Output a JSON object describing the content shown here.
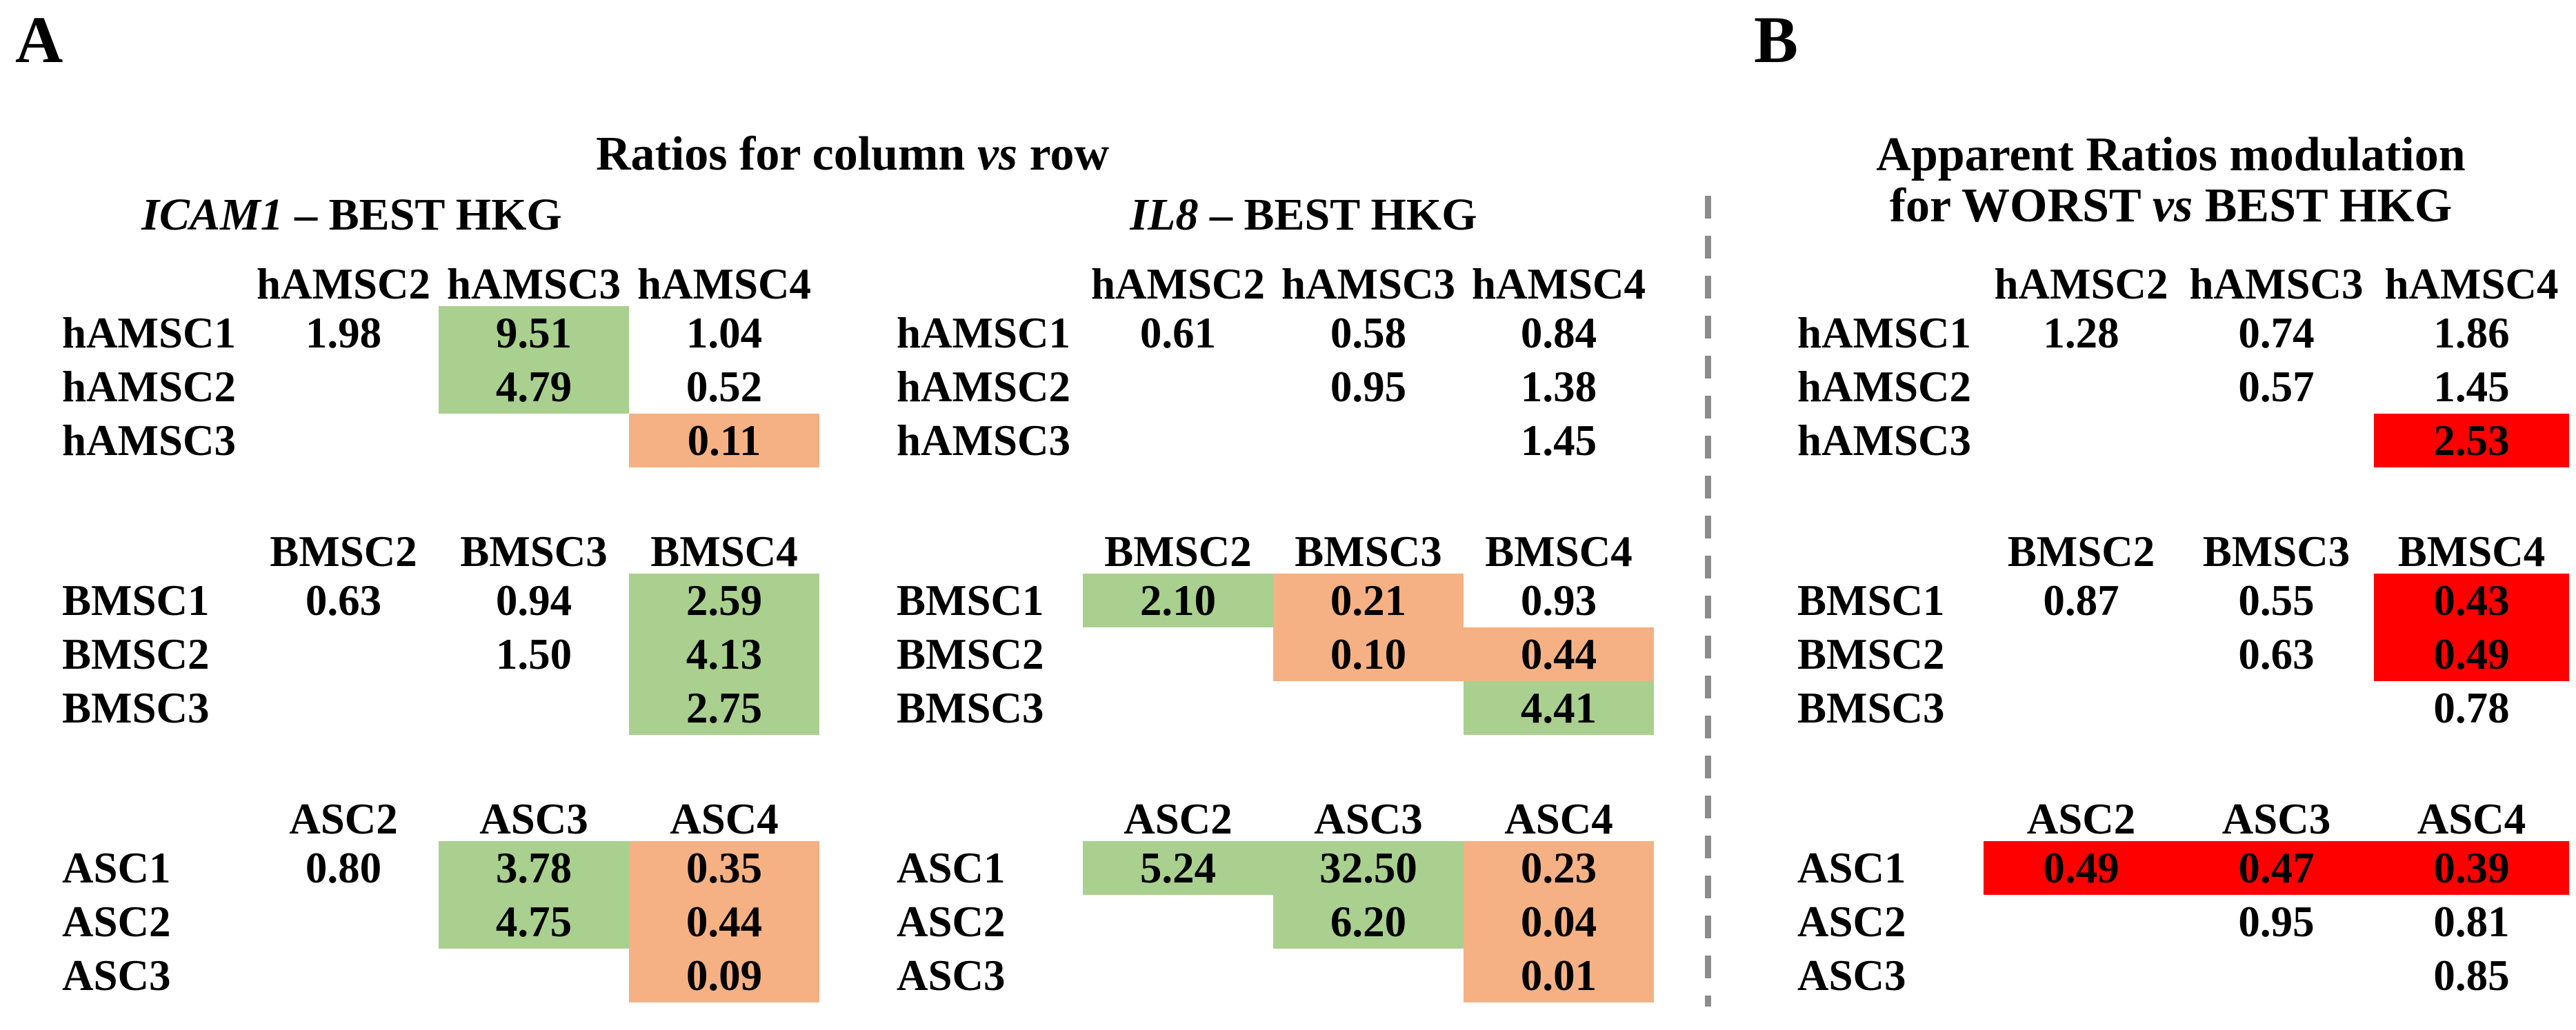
{
  "colors": {
    "highlight_green": "#A9D08E",
    "highlight_orange": "#F5B183",
    "highlight_red": "#FF0000",
    "divider": "#8C8C8C",
    "text": "#000000",
    "background": "#FFFFFF"
  },
  "panelA": {
    "label": "A",
    "title": {
      "pre": "Ratios for column ",
      "italic": "vs",
      "post": " row"
    },
    "tables": [
      {
        "id": "icam1",
        "heading": {
          "gene": "ICAM1",
          "rest": " – BEST HKG"
        },
        "matrices": [
          {
            "group": "hAMSC",
            "columns": [
              "hAMSC2",
              "hAMSC3",
              "hAMSC4"
            ],
            "rows": [
              {
                "label": "hAMSC1",
                "cells": [
                  {
                    "value": "1.98",
                    "highlight": "none"
                  },
                  {
                    "value": "9.51",
                    "highlight": "green"
                  },
                  {
                    "value": "1.04",
                    "highlight": "none"
                  }
                ]
              },
              {
                "label": "hAMSC2",
                "cells": [
                  {
                    "value": "",
                    "highlight": "none"
                  },
                  {
                    "value": "4.79",
                    "highlight": "green"
                  },
                  {
                    "value": "0.52",
                    "highlight": "none"
                  }
                ]
              },
              {
                "label": "hAMSC3",
                "cells": [
                  {
                    "value": "",
                    "highlight": "none"
                  },
                  {
                    "value": "",
                    "highlight": "none"
                  },
                  {
                    "value": "0.11",
                    "highlight": "orange"
                  }
                ]
              }
            ]
          },
          {
            "group": "BMSC",
            "columns": [
              "BMSC2",
              "BMSC3",
              "BMSC4"
            ],
            "rows": [
              {
                "label": "BMSC1",
                "cells": [
                  {
                    "value": "0.63",
                    "highlight": "none"
                  },
                  {
                    "value": "0.94",
                    "highlight": "none"
                  },
                  {
                    "value": "2.59",
                    "highlight": "green"
                  }
                ]
              },
              {
                "label": "BMSC2",
                "cells": [
                  {
                    "value": "",
                    "highlight": "none"
                  },
                  {
                    "value": "1.50",
                    "highlight": "none"
                  },
                  {
                    "value": "4.13",
                    "highlight": "green"
                  }
                ]
              },
              {
                "label": "BMSC3",
                "cells": [
                  {
                    "value": "",
                    "highlight": "none"
                  },
                  {
                    "value": "",
                    "highlight": "none"
                  },
                  {
                    "value": "2.75",
                    "highlight": "green"
                  }
                ]
              }
            ]
          },
          {
            "group": "ASC",
            "columns": [
              "ASC2",
              "ASC3",
              "ASC4"
            ],
            "rows": [
              {
                "label": "ASC1",
                "cells": [
                  {
                    "value": "0.80",
                    "highlight": "none"
                  },
                  {
                    "value": "3.78",
                    "highlight": "green"
                  },
                  {
                    "value": "0.35",
                    "highlight": "orange"
                  }
                ]
              },
              {
                "label": "ASC2",
                "cells": [
                  {
                    "value": "",
                    "highlight": "none"
                  },
                  {
                    "value": "4.75",
                    "highlight": "green"
                  },
                  {
                    "value": "0.44",
                    "highlight": "orange"
                  }
                ]
              },
              {
                "label": "ASC3",
                "cells": [
                  {
                    "value": "",
                    "highlight": "none"
                  },
                  {
                    "value": "",
                    "highlight": "none"
                  },
                  {
                    "value": "0.09",
                    "highlight": "orange"
                  }
                ]
              }
            ]
          }
        ]
      },
      {
        "id": "il8",
        "heading": {
          "gene": "IL8",
          "rest": " – BEST HKG"
        },
        "matrices": [
          {
            "group": "hAMSC",
            "columns": [
              "hAMSC2",
              "hAMSC3",
              "hAMSC4"
            ],
            "rows": [
              {
                "label": "hAMSC1",
                "cells": [
                  {
                    "value": "0.61",
                    "highlight": "none"
                  },
                  {
                    "value": "0.58",
                    "highlight": "none"
                  },
                  {
                    "value": "0.84",
                    "highlight": "none"
                  }
                ]
              },
              {
                "label": "hAMSC2",
                "cells": [
                  {
                    "value": "",
                    "highlight": "none"
                  },
                  {
                    "value": "0.95",
                    "highlight": "none"
                  },
                  {
                    "value": "1.38",
                    "highlight": "none"
                  }
                ]
              },
              {
                "label": "hAMSC3",
                "cells": [
                  {
                    "value": "",
                    "highlight": "none"
                  },
                  {
                    "value": "",
                    "highlight": "none"
                  },
                  {
                    "value": "1.45",
                    "highlight": "none"
                  }
                ]
              }
            ]
          },
          {
            "group": "BMSC",
            "columns": [
              "BMSC2",
              "BMSC3",
              "BMSC4"
            ],
            "rows": [
              {
                "label": "BMSC1",
                "cells": [
                  {
                    "value": "2.10",
                    "highlight": "green"
                  },
                  {
                    "value": "0.21",
                    "highlight": "orange"
                  },
                  {
                    "value": "0.93",
                    "highlight": "none"
                  }
                ]
              },
              {
                "label": "BMSC2",
                "cells": [
                  {
                    "value": "",
                    "highlight": "none"
                  },
                  {
                    "value": "0.10",
                    "highlight": "orange"
                  },
                  {
                    "value": "0.44",
                    "highlight": "orange"
                  }
                ]
              },
              {
                "label": "BMSC3",
                "cells": [
                  {
                    "value": "",
                    "highlight": "none"
                  },
                  {
                    "value": "",
                    "highlight": "none"
                  },
                  {
                    "value": "4.41",
                    "highlight": "green"
                  }
                ]
              }
            ]
          },
          {
            "group": "ASC",
            "columns": [
              "ASC2",
              "ASC3",
              "ASC4"
            ],
            "rows": [
              {
                "label": "ASC1",
                "cells": [
                  {
                    "value": "5.24",
                    "highlight": "green"
                  },
                  {
                    "value": "32.50",
                    "highlight": "green"
                  },
                  {
                    "value": "0.23",
                    "highlight": "orange"
                  }
                ]
              },
              {
                "label": "ASC2",
                "cells": [
                  {
                    "value": "",
                    "highlight": "none"
                  },
                  {
                    "value": "6.20",
                    "highlight": "green"
                  },
                  {
                    "value": "0.04",
                    "highlight": "orange"
                  }
                ]
              },
              {
                "label": "ASC3",
                "cells": [
                  {
                    "value": "",
                    "highlight": "none"
                  },
                  {
                    "value": "",
                    "highlight": "none"
                  },
                  {
                    "value": "0.01",
                    "highlight": "orange"
                  }
                ]
              }
            ]
          }
        ]
      }
    ]
  },
  "panelB": {
    "label": "B",
    "title": {
      "line1": "Apparent Ratios modulation",
      "line2_pre": "for WORST ",
      "line2_italic": "vs",
      "line2_post": " BEST HKG"
    },
    "matrices": [
      {
        "group": "hAMSC",
        "columns": [
          "hAMSC2",
          "hAMSC3",
          "hAMSC4"
        ],
        "rows": [
          {
            "label": "hAMSC1",
            "cells": [
              {
                "value": "1.28",
                "highlight": "none"
              },
              {
                "value": "0.74",
                "highlight": "none"
              },
              {
                "value": "1.86",
                "highlight": "none"
              }
            ]
          },
          {
            "label": "hAMSC2",
            "cells": [
              {
                "value": "",
                "highlight": "none"
              },
              {
                "value": "0.57",
                "highlight": "none"
              },
              {
                "value": "1.45",
                "highlight": "none"
              }
            ]
          },
          {
            "label": "hAMSC3",
            "cells": [
              {
                "value": "",
                "highlight": "none"
              },
              {
                "value": "",
                "highlight": "none"
              },
              {
                "value": "2.53",
                "highlight": "red"
              }
            ]
          }
        ]
      },
      {
        "group": "BMSC",
        "columns": [
          "BMSC2",
          "BMSC3",
          "BMSC4"
        ],
        "rows": [
          {
            "label": "BMSC1",
            "cells": [
              {
                "value": "0.87",
                "highlight": "none"
              },
              {
                "value": "0.55",
                "highlight": "none"
              },
              {
                "value": "0.43",
                "highlight": "red"
              }
            ]
          },
          {
            "label": "BMSC2",
            "cells": [
              {
                "value": "",
                "highlight": "none"
              },
              {
                "value": "0.63",
                "highlight": "none"
              },
              {
                "value": "0.49",
                "highlight": "red"
              }
            ]
          },
          {
            "label": "BMSC3",
            "cells": [
              {
                "value": "",
                "highlight": "none"
              },
              {
                "value": "",
                "highlight": "none"
              },
              {
                "value": "0.78",
                "highlight": "none"
              }
            ]
          }
        ]
      },
      {
        "group": "ASC",
        "columns": [
          "ASC2",
          "ASC3",
          "ASC4"
        ],
        "rows": [
          {
            "label": "ASC1",
            "cells": [
              {
                "value": "0.49",
                "highlight": "red"
              },
              {
                "value": "0.47",
                "highlight": "red"
              },
              {
                "value": "0.39",
                "highlight": "red"
              }
            ]
          },
          {
            "label": "ASC2",
            "cells": [
              {
                "value": "",
                "highlight": "none"
              },
              {
                "value": "0.95",
                "highlight": "none"
              },
              {
                "value": "0.81",
                "highlight": "none"
              }
            ]
          },
          {
            "label": "ASC3",
            "cells": [
              {
                "value": "",
                "highlight": "none"
              },
              {
                "value": "",
                "highlight": "none"
              },
              {
                "value": "0.85",
                "highlight": "none"
              }
            ]
          }
        ]
      }
    ]
  }
}
